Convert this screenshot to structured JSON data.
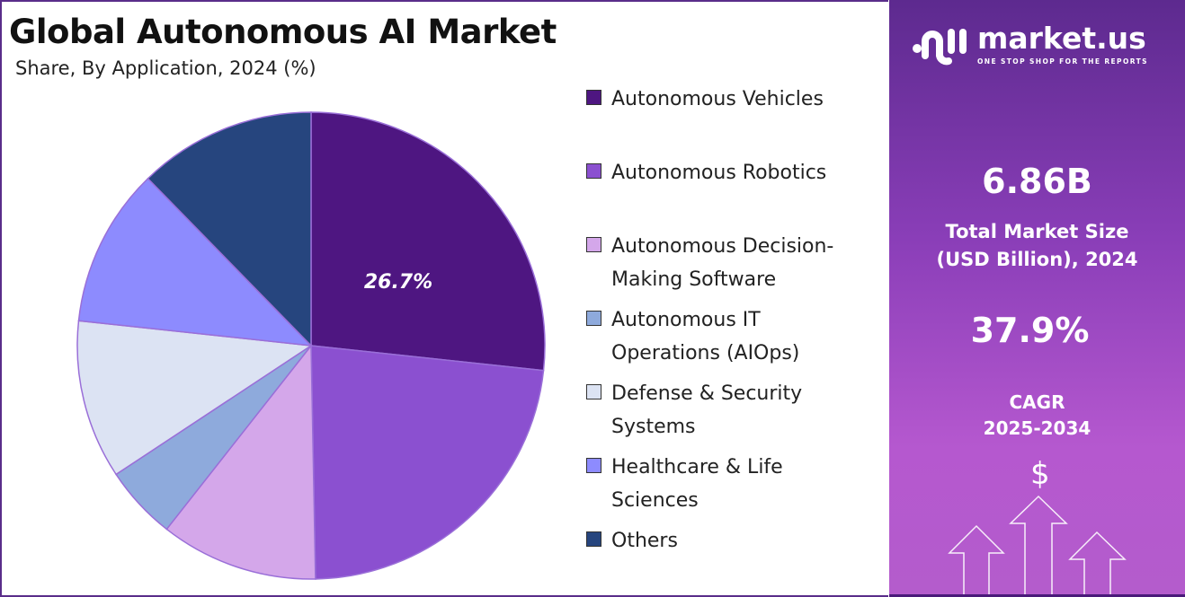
{
  "chart_data": {
    "type": "pie",
    "title": "Global Autonomous AI Market",
    "subtitle": "Share, By Application, 2024 (%)",
    "categories": [
      "Autonomous Vehicles",
      "Autonomous Robotics",
      "Autonomous Decision-Making Software",
      "Autonomous IT Operations (AIOps)",
      "Defense & Security Systems",
      "Healthcare & Life Sciences",
      "Others"
    ],
    "legend_lines": [
      [
        "Autonomous Vehicles"
      ],
      [
        "Autonomous Robotics"
      ],
      [
        "Autonomous Decision-",
        "Making Software"
      ],
      [
        "Autonomous IT",
        "Operations (AIOps)"
      ],
      [
        "Defense & Security",
        "Systems"
      ],
      [
        "Healthcare & Life",
        "Sciences"
      ],
      [
        "Others"
      ]
    ],
    "values": [
      26.7,
      23.0,
      10.9,
      5.1,
      11.0,
      11.0,
      12.3
    ],
    "colors": [
      "#4e1681",
      "#8b50d0",
      "#d4a7ea",
      "#8eaadc",
      "#dce3f3",
      "#8d8bfe",
      "#26457e"
    ],
    "data_labels": [
      "26.7%"
    ],
    "legend_placement": "right"
  },
  "panel": {
    "logo_name": "market.us",
    "logo_tagline": "ONE STOP SHOP FOR THE REPORTS",
    "market_size_value": "6.86B",
    "market_size_label_1": "Total Market Size",
    "market_size_label_2": "(USD Billion), 2024",
    "cagr_value": "37.9%",
    "cagr_label_1": "CAGR",
    "cagr_label_2": "2025-2034",
    "dollar_symbol": "$"
  }
}
